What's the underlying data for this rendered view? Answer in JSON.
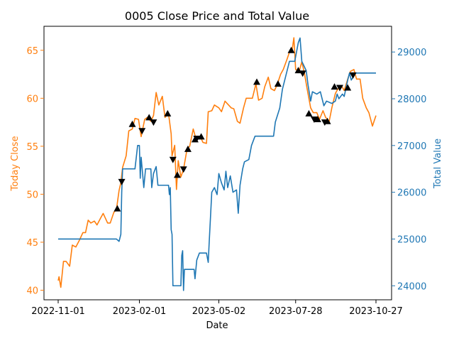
{
  "chart_data": {
    "type": "line",
    "title": "0005 Close Price and Total Value",
    "xlabel": "Date",
    "ylabel_left": "Today Close",
    "ylabel_right": "Total Value",
    "x_start": "2022-11-01",
    "x_end": "2023-10-27",
    "x_ticks": [
      "2022-11-01",
      "2023-02-01",
      "2023-05-02",
      "2023-07-28",
      "2023-10-27"
    ],
    "ylim_left": [
      39.0,
      67.5
    ],
    "ylim_right": [
      23700,
      29550
    ],
    "yticks_left": [
      "40",
      "45",
      "50",
      "55",
      "60",
      "65"
    ],
    "yticks_right": [
      "24000",
      "25000",
      "26000",
      "27000",
      "28000",
      "29000"
    ],
    "grid": false,
    "colors": {
      "close": "#ff7f0e",
      "total": "#1f77b4",
      "left_axis": "#ff7f0e",
      "right_axis": "#1f77b4",
      "markers": "#000000"
    },
    "series": [
      {
        "axis": "left",
        "points": [
          [
            "2022-11-01",
            41.0
          ],
          [
            "2022-11-02",
            41.4
          ],
          [
            "2022-11-04",
            40.3
          ],
          [
            "2022-11-07",
            43.0
          ],
          [
            "2022-11-10",
            43.0
          ],
          [
            "2022-11-14",
            42.5
          ],
          [
            "2022-11-17",
            44.7
          ],
          [
            "2022-11-21",
            44.5
          ],
          [
            "2022-11-25",
            45.2
          ],
          [
            "2022-11-29",
            46.0
          ],
          [
            "2022-12-02",
            46.0
          ],
          [
            "2022-12-05",
            47.3
          ],
          [
            "2022-12-08",
            47.0
          ],
          [
            "2022-12-12",
            47.2
          ],
          [
            "2022-12-15",
            46.8
          ],
          [
            "2022-12-19",
            47.5
          ],
          [
            "2022-12-22",
            48.0
          ],
          [
            "2022-12-27",
            47.0
          ],
          [
            "2022-12-30",
            47.0
          ],
          [
            "2023-01-03",
            48.1
          ],
          [
            "2023-01-06",
            48.4
          ],
          [
            "2023-01-09",
            50.4
          ],
          [
            "2023-01-11",
            51.2
          ],
          [
            "2023-01-13",
            52.8
          ],
          [
            "2023-01-17",
            54.0
          ],
          [
            "2023-01-20",
            56.6
          ],
          [
            "2023-01-24",
            56.8
          ],
          [
            "2023-01-27",
            57.9
          ],
          [
            "2023-01-31",
            57.8
          ],
          [
            "2023-02-03",
            56.0
          ],
          [
            "2023-02-07",
            57.8
          ],
          [
            "2023-02-10",
            58.0
          ],
          [
            "2023-02-14",
            57.6
          ],
          [
            "2023-02-17",
            58.2
          ],
          [
            "2023-02-20",
            60.6
          ],
          [
            "2023-02-23",
            59.3
          ],
          [
            "2023-02-27",
            60.2
          ],
          [
            "2023-03-02",
            58.0
          ],
          [
            "2023-03-06",
            58.4
          ],
          [
            "2023-03-09",
            56.3
          ],
          [
            "2023-03-10",
            54.0
          ],
          [
            "2023-03-13",
            55.1
          ],
          [
            "2023-03-15",
            50.5
          ],
          [
            "2023-03-17",
            53.5
          ],
          [
            "2023-03-20",
            51.8
          ],
          [
            "2023-03-23",
            52.6
          ],
          [
            "2023-03-27",
            54.7
          ],
          [
            "2023-03-30",
            55.0
          ],
          [
            "2023-04-03",
            56.8
          ],
          [
            "2023-04-06",
            55.8
          ],
          [
            "2023-04-11",
            56.0
          ],
          [
            "2023-04-14",
            55.4
          ],
          [
            "2023-04-18",
            55.3
          ],
          [
            "2023-04-20",
            58.6
          ],
          [
            "2023-04-24",
            58.7
          ],
          [
            "2023-04-27",
            59.3
          ],
          [
            "2023-05-02",
            59.0
          ],
          [
            "2023-05-05",
            58.6
          ],
          [
            "2023-05-09",
            59.7
          ],
          [
            "2023-05-12",
            59.4
          ],
          [
            "2023-05-16",
            59.0
          ],
          [
            "2023-05-19",
            58.9
          ],
          [
            "2023-05-23",
            57.6
          ],
          [
            "2023-05-26",
            57.4
          ],
          [
            "2023-05-30",
            59.0
          ],
          [
            "2023-06-02",
            60.0
          ],
          [
            "2023-06-06",
            60.0
          ],
          [
            "2023-06-09",
            60.0
          ],
          [
            "2023-06-13",
            61.5
          ],
          [
            "2023-06-16",
            59.8
          ],
          [
            "2023-06-20",
            60.0
          ],
          [
            "2023-06-23",
            61.2
          ],
          [
            "2023-06-27",
            62.2
          ],
          [
            "2023-06-30",
            61.0
          ],
          [
            "2023-07-04",
            60.8
          ],
          [
            "2023-07-07",
            61.4
          ],
          [
            "2023-07-11",
            62.5
          ],
          [
            "2023-07-14",
            63.0
          ],
          [
            "2023-07-18",
            64.0
          ],
          [
            "2023-07-21",
            64.8
          ],
          [
            "2023-07-24",
            65.0
          ],
          [
            "2023-07-26",
            66.3
          ],
          [
            "2023-07-28",
            63.0
          ],
          [
            "2023-08-01",
            62.8
          ],
          [
            "2023-08-04",
            63.8
          ],
          [
            "2023-08-07",
            62.6
          ],
          [
            "2023-08-10",
            61.0
          ],
          [
            "2023-08-14",
            59.0
          ],
          [
            "2023-08-17",
            58.5
          ],
          [
            "2023-08-21",
            58.5
          ],
          [
            "2023-08-24",
            57.8
          ],
          [
            "2023-08-28",
            58.7
          ],
          [
            "2023-08-31",
            58.0
          ],
          [
            "2023-09-04",
            57.6
          ],
          [
            "2023-09-07",
            59.0
          ],
          [
            "2023-09-11",
            60.5
          ],
          [
            "2023-09-14",
            61.0
          ],
          [
            "2023-09-18",
            61.3
          ],
          [
            "2023-09-21",
            60.8
          ],
          [
            "2023-09-25",
            62.0
          ],
          [
            "2023-09-28",
            62.8
          ],
          [
            "2023-10-02",
            63.0
          ],
          [
            "2023-10-05",
            62.0
          ],
          [
            "2023-10-09",
            62.0
          ],
          [
            "2023-10-12",
            60.0
          ],
          [
            "2023-10-16",
            59.0
          ],
          [
            "2023-10-19",
            58.5
          ],
          [
            "2023-10-23",
            57.1
          ],
          [
            "2023-10-27",
            58.2
          ]
        ]
      },
      {
        "axis": "right",
        "points": [
          [
            "2022-11-01",
            25000
          ],
          [
            "2023-01-06",
            25000
          ],
          [
            "2023-01-09",
            24950
          ],
          [
            "2023-01-11",
            25100
          ],
          [
            "2023-01-12",
            26000
          ],
          [
            "2023-01-13",
            26500
          ],
          [
            "2023-01-27",
            26500
          ],
          [
            "2023-01-30",
            27000
          ],
          [
            "2023-02-01",
            27000
          ],
          [
            "2023-02-02",
            26300
          ],
          [
            "2023-02-03",
            26750
          ],
          [
            "2023-02-06",
            26100
          ],
          [
            "2023-02-08",
            26500
          ],
          [
            "2023-02-14",
            26500
          ],
          [
            "2023-02-15",
            26100
          ],
          [
            "2023-02-17",
            26400
          ],
          [
            "2023-02-20",
            26550
          ],
          [
            "2023-02-22",
            26150
          ],
          [
            "2023-03-06",
            26150
          ],
          [
            "2023-03-07",
            25950
          ],
          [
            "2023-03-08",
            26100
          ],
          [
            "2023-03-09",
            25200
          ],
          [
            "2023-03-10",
            25100
          ],
          [
            "2023-03-11",
            24000
          ],
          [
            "2023-03-20",
            24000
          ],
          [
            "2023-03-21",
            24650
          ],
          [
            "2023-03-22",
            24750
          ],
          [
            "2023-03-23",
            23900
          ],
          [
            "2023-03-24",
            24350
          ],
          [
            "2023-04-04",
            24350
          ],
          [
            "2023-04-05",
            24150
          ],
          [
            "2023-04-07",
            24550
          ],
          [
            "2023-04-10",
            24700
          ],
          [
            "2023-04-18",
            24700
          ],
          [
            "2023-04-20",
            24500
          ],
          [
            "2023-04-21",
            24900
          ],
          [
            "2023-04-24",
            26000
          ],
          [
            "2023-04-27",
            26100
          ],
          [
            "2023-04-30",
            25950
          ],
          [
            "2023-05-02",
            26400
          ],
          [
            "2023-05-05",
            26200
          ],
          [
            "2023-05-08",
            26050
          ],
          [
            "2023-05-10",
            26450
          ],
          [
            "2023-05-12",
            26100
          ],
          [
            "2023-05-15",
            26350
          ],
          [
            "2023-05-18",
            26000
          ],
          [
            "2023-05-22",
            26050
          ],
          [
            "2023-05-24",
            25550
          ],
          [
            "2023-05-26",
            26150
          ],
          [
            "2023-05-29",
            26500
          ],
          [
            "2023-05-31",
            26650
          ],
          [
            "2023-06-05",
            26700
          ],
          [
            "2023-06-08",
            27000
          ],
          [
            "2023-06-12",
            27200
          ],
          [
            "2023-07-03",
            27200
          ],
          [
            "2023-07-05",
            27500
          ],
          [
            "2023-07-10",
            27800
          ],
          [
            "2023-07-13",
            28200
          ],
          [
            "2023-07-17",
            28500
          ],
          [
            "2023-07-21",
            28800
          ],
          [
            "2023-07-27",
            28800
          ],
          [
            "2023-07-31",
            29200
          ],
          [
            "2023-08-02",
            29300
          ],
          [
            "2023-08-04",
            28800
          ],
          [
            "2023-08-09",
            28600
          ],
          [
            "2023-08-11",
            28300
          ],
          [
            "2023-08-14",
            27950
          ],
          [
            "2023-08-16",
            28150
          ],
          [
            "2023-08-21",
            28100
          ],
          [
            "2023-08-25",
            28150
          ],
          [
            "2023-08-29",
            27850
          ],
          [
            "2023-09-01",
            27950
          ],
          [
            "2023-09-07",
            27900
          ],
          [
            "2023-09-11",
            27950
          ],
          [
            "2023-09-13",
            28100
          ],
          [
            "2023-09-15",
            28000
          ],
          [
            "2023-09-19",
            28100
          ],
          [
            "2023-09-21",
            28050
          ],
          [
            "2023-09-25",
            28400
          ],
          [
            "2023-09-27",
            28550
          ],
          [
            "2023-09-29",
            28400
          ],
          [
            "2023-10-04",
            28550
          ],
          [
            "2023-10-27",
            28550
          ]
        ]
      }
    ],
    "buy_markers": [
      [
        "2023-01-07",
        48.5
      ],
      [
        "2023-01-24",
        57.3
      ],
      [
        "2023-02-12",
        58.0
      ],
      [
        "2023-03-05",
        58.4
      ],
      [
        "2023-03-16",
        52.0
      ],
      [
        "2023-03-28",
        54.7
      ],
      [
        "2023-04-05",
        55.7
      ],
      [
        "2023-04-12",
        56.0
      ],
      [
        "2023-06-14",
        61.7
      ],
      [
        "2023-07-08",
        61.5
      ],
      [
        "2023-07-23",
        65.0
      ],
      [
        "2023-07-31",
        62.9
      ],
      [
        "2023-08-12",
        58.4
      ],
      [
        "2023-08-22",
        57.8
      ],
      [
        "2023-09-02",
        57.6
      ],
      [
        "2023-09-10",
        61.2
      ],
      [
        "2023-09-25",
        61.1
      ]
    ],
    "sell_markers": [
      [
        "2023-01-12",
        51.3
      ],
      [
        "2023-02-04",
        56.6
      ],
      [
        "2023-02-17",
        57.5
      ],
      [
        "2023-03-11",
        53.6
      ],
      [
        "2023-03-23",
        52.6
      ],
      [
        "2023-04-07",
        55.8
      ],
      [
        "2023-08-05",
        62.6
      ],
      [
        "2023-08-18",
        57.8
      ],
      [
        "2023-08-30",
        57.5
      ],
      [
        "2023-09-16",
        61.1
      ],
      [
        "2023-10-01",
        62.4
      ]
    ]
  }
}
